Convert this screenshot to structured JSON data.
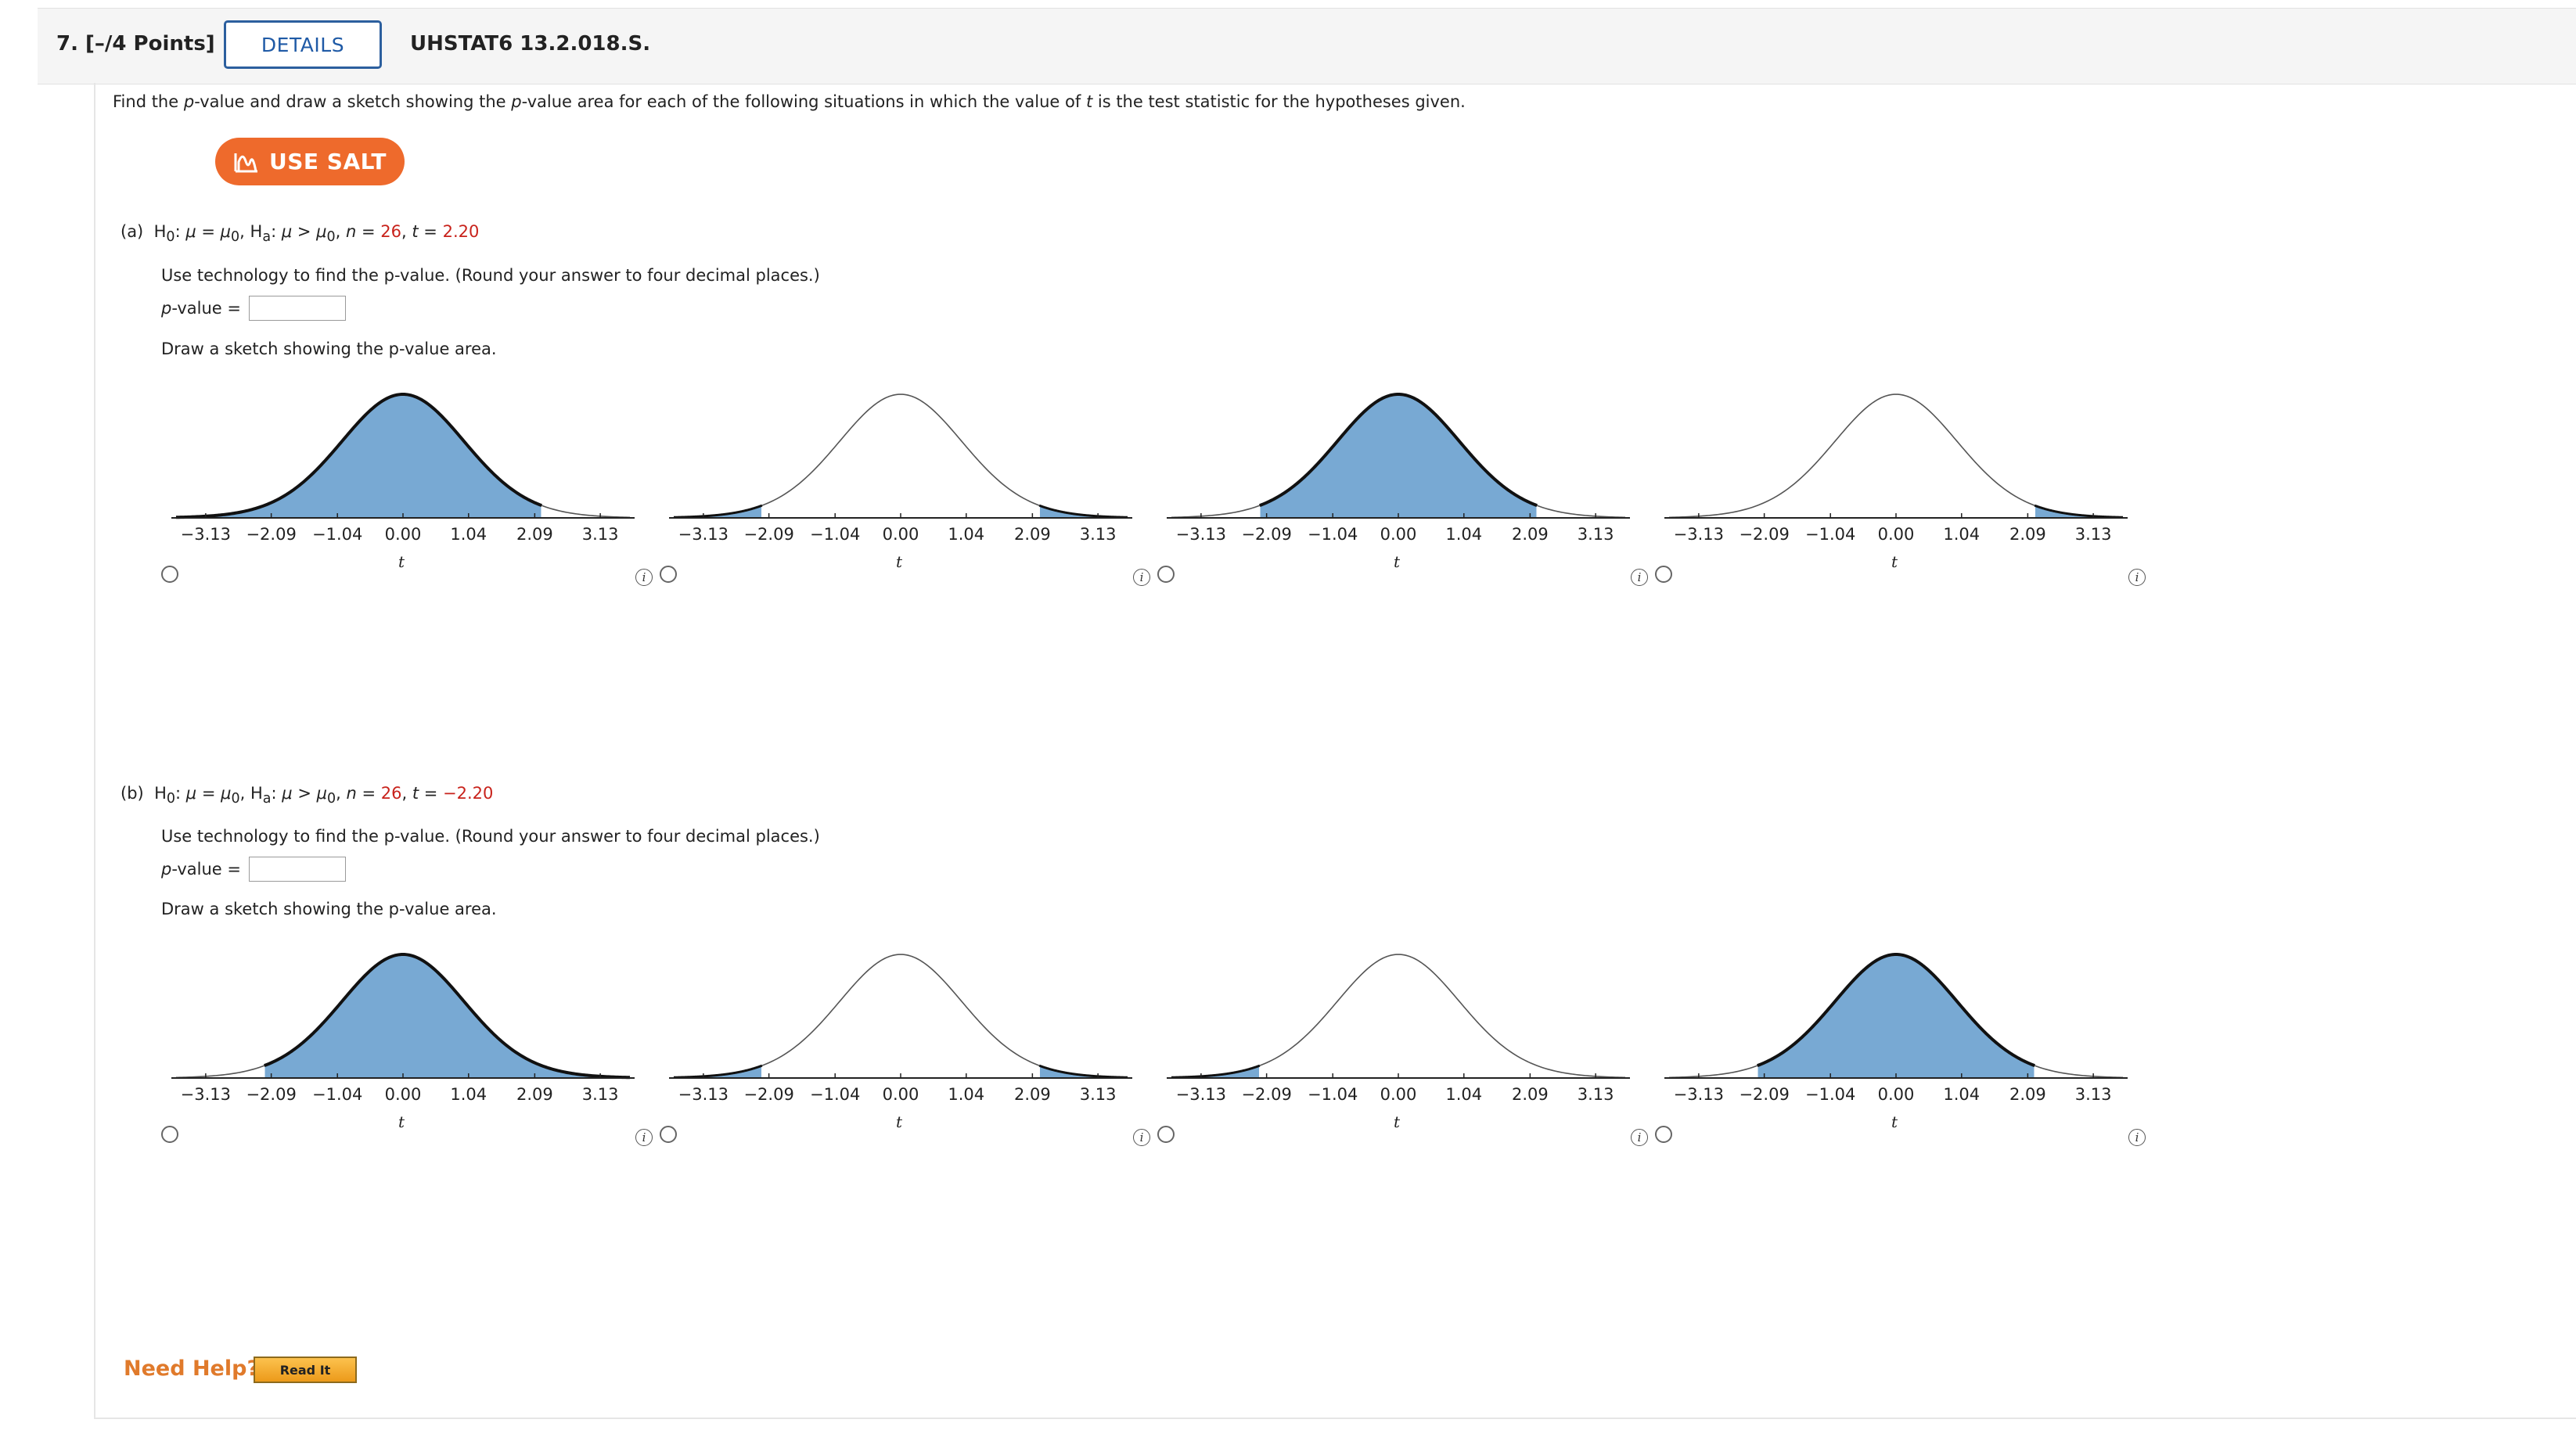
{
  "header": {
    "question_number": "7.",
    "points": "[–/4 Points]",
    "details_label": "DETAILS",
    "problem_code": "UHSTAT6 13.2.018.S."
  },
  "instructions": {
    "text_1": "Find the ",
    "p1": "p",
    "text_2": "-value and draw a sketch showing the ",
    "p2": "p",
    "text_3": "-value area for each of the following situations in which the value of ",
    "t": "t",
    "text_4": " is the test statistic for the hypotheses given."
  },
  "salt_button": {
    "label": "USE SALT"
  },
  "parts": [
    {
      "label": "(a)",
      "n": "26",
      "t_value": "2.20",
      "prompt": "Use technology to find the p-value. (Round your answer to four decimal places.)",
      "pvalue_label": "-value =",
      "pvalue_input": "",
      "sketch_prompt": "Draw a sketch showing the p-value area."
    },
    {
      "label": "(b)",
      "n": "26",
      "t_value": "−2.20",
      "prompt": "Use technology to find the p-value. (Round your answer to four decimal places.)",
      "pvalue_label": "-value =",
      "pvalue_input": "",
      "sketch_prompt": "Draw a sketch showing the p-value area."
    }
  ],
  "chart_data": {
    "type": "area",
    "curve": "t-distribution density, df = 25",
    "ticks": [
      "−3.13",
      "−2.09",
      "−1.04",
      "0.00",
      "1.04",
      "2.09",
      "3.13"
    ],
    "tick_values": [
      -3.13,
      -2.09,
      -1.04,
      0.0,
      1.04,
      2.09,
      3.13
    ],
    "xlabel": "t",
    "fill_color": "#78a9d3",
    "graphs_a": [
      {
        "shade": [
          [
            -3.6,
            2.2
          ]
        ]
      },
      {
        "shade": [
          [
            -3.6,
            -2.2
          ],
          [
            2.2,
            3.6
          ]
        ]
      },
      {
        "shade": [
          [
            -2.2,
            2.2
          ]
        ]
      },
      {
        "shade": [
          [
            2.2,
            3.6
          ]
        ]
      }
    ],
    "graphs_b": [
      {
        "shade": [
          [
            -2.2,
            3.6
          ]
        ]
      },
      {
        "shade": [
          [
            -3.6,
            -2.2
          ],
          [
            2.2,
            3.6
          ]
        ]
      },
      {
        "shade": [
          [
            -3.6,
            -2.2
          ]
        ]
      },
      {
        "shade": [
          [
            -2.2,
            2.2
          ]
        ]
      }
    ]
  },
  "help": {
    "need_help": "Need Help?",
    "read_it": "Read It"
  }
}
